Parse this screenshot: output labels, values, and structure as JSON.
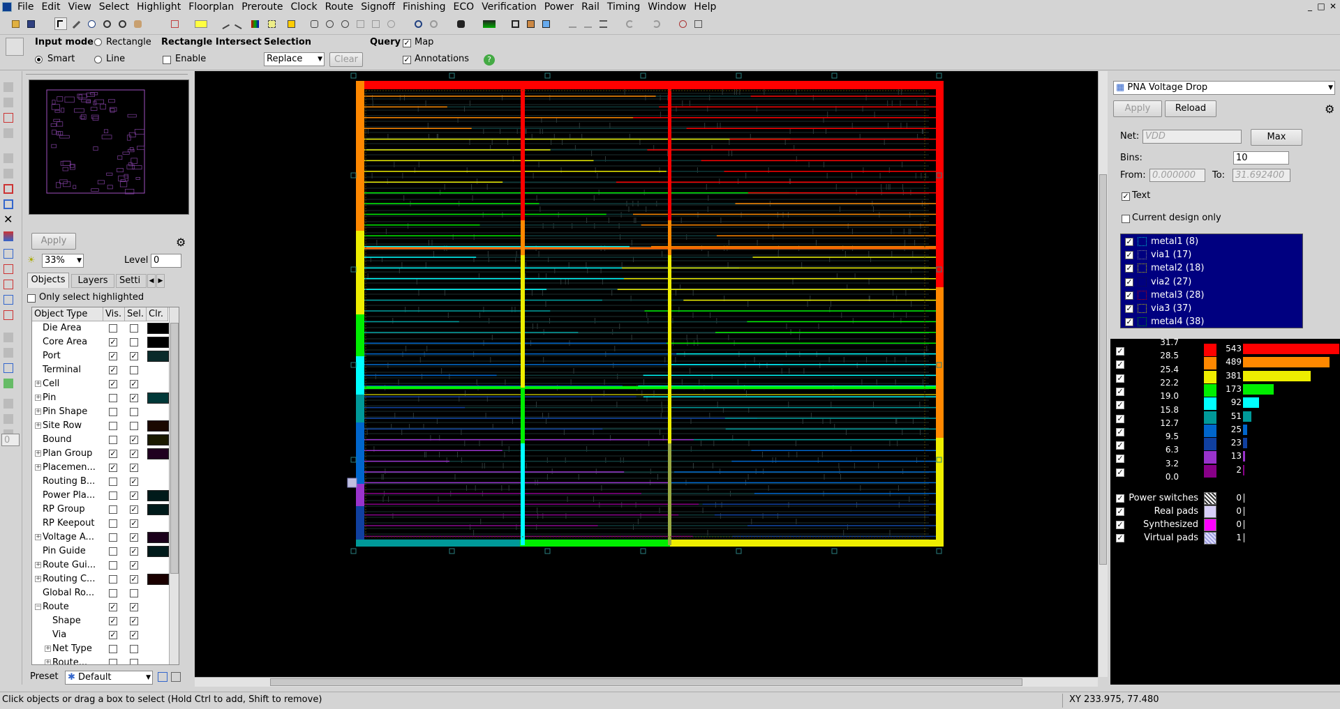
{
  "menu": [
    "File",
    "Edit",
    "View",
    "Select",
    "Highlight",
    "Floorplan",
    "Preroute",
    "Clock",
    "Route",
    "Signoff",
    "Finishing",
    "ECO",
    "Verification",
    "Power",
    "Rail",
    "Timing",
    "Window",
    "Help"
  ],
  "window_controls": [
    "_",
    "□",
    "✕"
  ],
  "options": {
    "input_mode_label": "Input mode",
    "rectangle": "Rectangle",
    "smart": "Smart",
    "line": "Line",
    "rect_intersect_label": "Rectangle Intersect",
    "enable": "Enable",
    "selection_label": "Selection",
    "selection_value": "Replace",
    "clear": "Clear",
    "query_label": "Query",
    "map": "Map",
    "annotations": "Annotations",
    "help": "?"
  },
  "left": {
    "apply": "Apply",
    "zoom": "33%",
    "level_label": "Level",
    "level_value": "0",
    "tabs": [
      "Objects",
      "Layers",
      "Setti"
    ],
    "only_select_highlighted": "Only select highlighted",
    "headers": [
      "Object Type",
      "Vis.",
      "Sel.",
      "Clr."
    ],
    "rows": [
      {
        "name": "Die Area",
        "indent": 1,
        "expand": false,
        "vis": false,
        "sel": false,
        "color": "#000000"
      },
      {
        "name": "Core Area",
        "indent": 1,
        "expand": false,
        "vis": true,
        "sel": false,
        "color": "#000000"
      },
      {
        "name": "Port",
        "indent": 1,
        "expand": false,
        "vis": true,
        "sel": true,
        "color": "#0a2a2a"
      },
      {
        "name": "Terminal",
        "indent": 1,
        "expand": false,
        "vis": true,
        "sel": false,
        "color": ""
      },
      {
        "name": "Cell",
        "indent": 1,
        "expand": true,
        "vis": true,
        "sel": true,
        "color": ""
      },
      {
        "name": "Pin",
        "indent": 1,
        "expand": true,
        "vis": false,
        "sel": true,
        "color": "#003838"
      },
      {
        "name": "Pin Shape",
        "indent": 1,
        "expand": true,
        "vis": false,
        "sel": false,
        "color": ""
      },
      {
        "name": "Site Row",
        "indent": 1,
        "expand": true,
        "vis": false,
        "sel": false,
        "color": "#1a0800"
      },
      {
        "name": "Bound",
        "indent": 1,
        "expand": false,
        "vis": false,
        "sel": true,
        "color": "#1a1a00"
      },
      {
        "name": "Plan Group",
        "indent": 1,
        "expand": true,
        "vis": true,
        "sel": true,
        "color": "#200020"
      },
      {
        "name": "Placemen...",
        "indent": 1,
        "expand": true,
        "vis": true,
        "sel": true,
        "color": ""
      },
      {
        "name": "Routing B...",
        "indent": 1,
        "expand": false,
        "vis": false,
        "sel": true,
        "color": ""
      },
      {
        "name": "Power Pla...",
        "indent": 1,
        "expand": false,
        "vis": false,
        "sel": true,
        "color": "#001a1a"
      },
      {
        "name": "RP Group",
        "indent": 1,
        "expand": false,
        "vis": false,
        "sel": true,
        "color": "#001a1a"
      },
      {
        "name": "RP Keepout",
        "indent": 1,
        "expand": false,
        "vis": false,
        "sel": true,
        "color": ""
      },
      {
        "name": "Voltage A...",
        "indent": 1,
        "expand": true,
        "vis": false,
        "sel": true,
        "color": "#1a001a"
      },
      {
        "name": "Pin Guide",
        "indent": 1,
        "expand": false,
        "vis": false,
        "sel": true,
        "color": "#001a1a"
      },
      {
        "name": "Route Gui...",
        "indent": 1,
        "expand": true,
        "vis": false,
        "sel": true,
        "color": ""
      },
      {
        "name": "Routing C...",
        "indent": 1,
        "expand": true,
        "vis": false,
        "sel": true,
        "color": "#1a0000"
      },
      {
        "name": "Global Ro...",
        "indent": 1,
        "expand": false,
        "vis": false,
        "sel": false,
        "color": ""
      },
      {
        "name": "Route",
        "indent": 1,
        "expand": "open",
        "vis": true,
        "sel": true,
        "color": ""
      },
      {
        "name": "Shape",
        "indent": 2,
        "expand": false,
        "vis": true,
        "sel": true,
        "color": ""
      },
      {
        "name": "Via",
        "indent": 2,
        "expand": false,
        "vis": true,
        "sel": true,
        "color": ""
      },
      {
        "name": "Net Type",
        "indent": 2,
        "expand": true,
        "vis": false,
        "sel": false,
        "color": ""
      },
      {
        "name": "Route...",
        "indent": 2,
        "expand": true,
        "vis": false,
        "sel": false,
        "color": ""
      }
    ],
    "preset_label": "Preset",
    "preset_value": "Default"
  },
  "right": {
    "map_name": "PNA Voltage Drop",
    "apply": "Apply",
    "reload": "Reload",
    "net_label": "Net:",
    "net_value": "VDD",
    "max": "Max",
    "bins_label": "Bins:",
    "bins_value": "10",
    "from_label": "From:",
    "from_value": "0.000000",
    "to_label": "To:",
    "to_value": "31.692400",
    "text_label": "Text",
    "current_design_only": "Current design only",
    "layers": [
      {
        "name": "metal1 (8)",
        "color": "#00cccc"
      },
      {
        "name": "via1 (17)",
        "color": "#888888"
      },
      {
        "name": "metal2 (18)",
        "color": "#cccc00"
      },
      {
        "name": "via2 (27)",
        "color": "#101040"
      },
      {
        "name": "metal3 (28)",
        "color": "#cc0000"
      },
      {
        "name": "via3 (37)",
        "color": "#cccc00"
      },
      {
        "name": "metal4 (38)",
        "color": "#00aa00"
      }
    ],
    "histogram": [
      {
        "value": "31.7",
        "count": "543",
        "color": "#ff0000",
        "fraction": 1.0
      },
      {
        "value": "28.5",
        "count": "489",
        "color": "#ff8800",
        "fraction": 0.9
      },
      {
        "value": "25.4",
        "count": "381",
        "color": "#eeee00",
        "fraction": 0.7
      },
      {
        "value": "22.2",
        "count": "173",
        "color": "#00ee00",
        "fraction": 0.32
      },
      {
        "value": "19.0",
        "count": "92",
        "color": "#00ffff",
        "fraction": 0.17
      },
      {
        "value": "15.8",
        "count": "51",
        "color": "#009999",
        "fraction": 0.09
      },
      {
        "value": "12.7",
        "count": "25",
        "color": "#0066cc",
        "fraction": 0.046
      },
      {
        "value": "9.5",
        "count": "23",
        "color": "#1040a0",
        "fraction": 0.042
      },
      {
        "value": "6.3",
        "count": "13",
        "color": "#9933cc",
        "fraction": 0.024
      },
      {
        "value": "3.2",
        "count": "2",
        "color": "#880088",
        "fraction": 0.004
      },
      {
        "value": "0.0",
        "count": "",
        "color": "",
        "fraction": 0
      }
    ],
    "pads": [
      {
        "name": "Power switches",
        "count": "0",
        "pattern": "power-switch-swatch"
      },
      {
        "name": "Real pads",
        "count": "0",
        "pattern": "real-pad-swatch"
      },
      {
        "name": "Synthesized",
        "count": "0",
        "pattern": "synthesized-swatch"
      },
      {
        "name": "Virtual pads",
        "count": "1",
        "pattern": "virtual-pad-swatch"
      }
    ]
  },
  "status": {
    "message": "Click objects or drag a box to select (Hold Ctrl to add, Shift to remove)",
    "coords": "XY 233.975, 77.480"
  }
}
